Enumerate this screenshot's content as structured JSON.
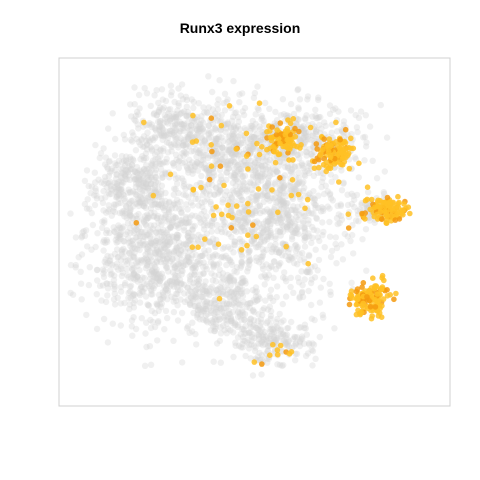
{
  "chart_data": {
    "type": "scatter",
    "title": "Runx3 expression",
    "xlabel": "",
    "ylabel": "",
    "gene": "Runx3",
    "colors": {
      "background_cells": "#d3d3d3",
      "expressing_low": "#ffc125",
      "expressing_high": "#f59a0f",
      "panel_border": "#d0d0d0"
    },
    "grid": false,
    "legend": "none",
    "axes_shown": false,
    "background_clusters": [
      {
        "cx": 0.25,
        "cy": 0.55,
        "rx": 0.2,
        "ry": 0.23,
        "n": 950
      },
      {
        "cx": 0.4,
        "cy": 0.25,
        "rx": 0.17,
        "ry": 0.14,
        "n": 500
      },
      {
        "cx": 0.55,
        "cy": 0.45,
        "rx": 0.18,
        "ry": 0.25,
        "n": 800
      },
      {
        "cx": 0.18,
        "cy": 0.35,
        "rx": 0.1,
        "ry": 0.1,
        "n": 220
      },
      {
        "cx": 0.27,
        "cy": 0.18,
        "rx": 0.1,
        "ry": 0.09,
        "n": 160
      },
      {
        "cx": 0.62,
        "cy": 0.22,
        "rx": 0.15,
        "ry": 0.1,
        "n": 300
      },
      {
        "cx": 0.55,
        "cy": 0.82,
        "rx": 0.1,
        "ry": 0.07,
        "n": 180
      },
      {
        "cx": 0.42,
        "cy": 0.7,
        "rx": 0.1,
        "ry": 0.1,
        "n": 240
      },
      {
        "cx": 0.8,
        "cy": 0.43,
        "rx": 0.05,
        "ry": 0.05,
        "n": 60
      }
    ],
    "expressing_clusters": [
      {
        "cx": 0.57,
        "cy": 0.23,
        "rx": 0.05,
        "ry": 0.05,
        "n": 90
      },
      {
        "cx": 0.7,
        "cy": 0.27,
        "rx": 0.05,
        "ry": 0.05,
        "n": 110
      },
      {
        "cx": 0.84,
        "cy": 0.43,
        "rx": 0.06,
        "ry": 0.04,
        "n": 110
      },
      {
        "cx": 0.8,
        "cy": 0.69,
        "rx": 0.05,
        "ry": 0.05,
        "n": 130
      },
      {
        "cx": 0.47,
        "cy": 0.4,
        "rx": 0.24,
        "ry": 0.3,
        "n": 65
      },
      {
        "cx": 0.56,
        "cy": 0.85,
        "rx": 0.06,
        "ry": 0.04,
        "n": 10
      }
    ]
  }
}
